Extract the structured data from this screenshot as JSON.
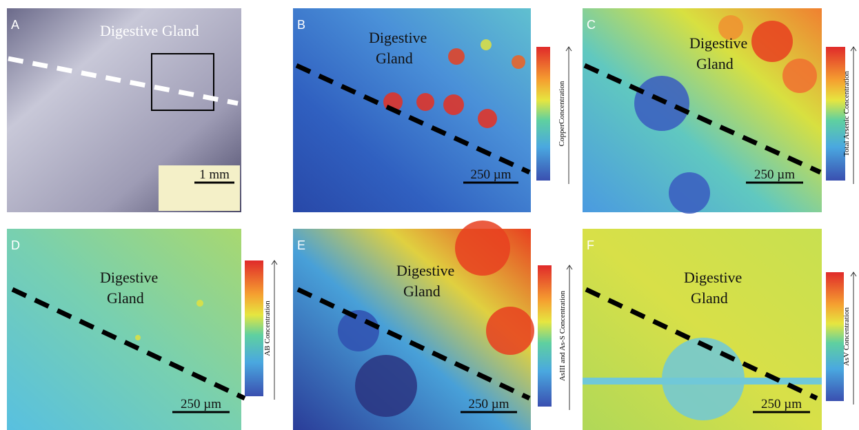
{
  "panels": [
    {
      "letter": "A",
      "title_lines": [
        "Digestive Gland"
      ],
      "scale_bar": "1 mm"
    },
    {
      "letter": "B",
      "title_lines": [
        "Digestive",
        "Gland"
      ],
      "scale_bar": "250 µm",
      "colorbar_label": "CopperConcentration"
    },
    {
      "letter": "C",
      "title_lines": [
        "Digestive",
        "Gland"
      ],
      "scale_bar": "250 µm",
      "colorbar_label": "Total Arsenic Concentration"
    },
    {
      "letter": "D",
      "title_lines": [
        "Digestive",
        "Gland"
      ],
      "scale_bar": "250 µm",
      "colorbar_label": "AB Concentration"
    },
    {
      "letter": "E",
      "title_lines": [
        "Digestive",
        "Gland"
      ],
      "scale_bar": "250 µm",
      "colorbar_label": "AsIII and As-S Concentration"
    },
    {
      "letter": "F",
      "title_lines": [
        "Digestive",
        "Gland"
      ],
      "scale_bar": "250 µm",
      "colorbar_label": "AsV Concentration"
    }
  ]
}
